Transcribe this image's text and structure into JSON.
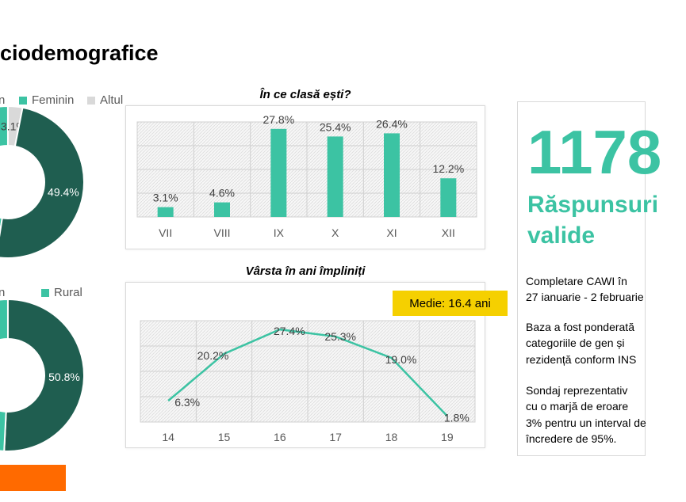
{
  "page": {
    "title": "ciodemografice"
  },
  "colors": {
    "teal": "#3cc3a3",
    "dark_green": "#1f5e50",
    "light_grey": "#d9d9d9",
    "badge": "#f5d000",
    "orange": "#ff6a00"
  },
  "info": {
    "count": "1178",
    "label": "Răspunsuri valide",
    "para1": "Completare CAWI în\n27 ianuarie - 2 februarie",
    "para2": "Baza a fost ponderată\ncategoriile de gen și\nrezidență conform INS",
    "para3": "Sondaj reprezentativ\ncu o marjă de eroare\n3% pentru un interval de\nîncredere de 95%."
  },
  "mean_badge": "Medie: 16.4 ani",
  "chart_data": [
    {
      "type": "pie",
      "title": "",
      "legend": [
        "n",
        "Feminin",
        "Altul"
      ],
      "slices": [
        {
          "name": "Feminin",
          "value": 47.5,
          "label": "",
          "color": "#3cc3a3"
        },
        {
          "name": "Altul",
          "value": 3.1,
          "label": "3.1%",
          "color": "#d9d9d9"
        },
        {
          "name": "",
          "value": 49.4,
          "label": "49.4%",
          "color": "#1f5e50"
        }
      ]
    },
    {
      "type": "pie",
      "title": "",
      "legend": [
        "n",
        "Rural"
      ],
      "slices": [
        {
          "name": "Rural",
          "value": 20.0,
          "label": "",
          "color": "#3cc3a3"
        },
        {
          "name": "",
          "value": 50.8,
          "label": "50.8%",
          "color": "#1f5e50"
        },
        {
          "name": "",
          "value": 29.2,
          "label": "%",
          "color": "#3cc3a3"
        }
      ]
    },
    {
      "type": "bar",
      "title": "În ce clasă ești?",
      "categories": [
        "VII",
        "VIII",
        "IX",
        "X",
        "XI",
        "XII"
      ],
      "values": [
        3.1,
        4.6,
        27.8,
        25.4,
        26.4,
        12.2
      ],
      "labels": [
        "3.1%",
        "4.6%",
        "27.8%",
        "25.4%",
        "26.4%",
        "12.2%"
      ],
      "ylim": [
        0,
        30
      ],
      "grid": true
    },
    {
      "type": "line",
      "title": "Vârsta în ani împliniți",
      "x": [
        "14",
        "15",
        "16",
        "17",
        "18",
        "19"
      ],
      "values": [
        6.3,
        20.2,
        27.4,
        25.3,
        19.0,
        1.8
      ],
      "labels": [
        "6.3%",
        "20.2%",
        "27.4%",
        "25.3%",
        "19.0%",
        "1.8%"
      ],
      "ylim": [
        0,
        30
      ],
      "grid": true
    }
  ]
}
